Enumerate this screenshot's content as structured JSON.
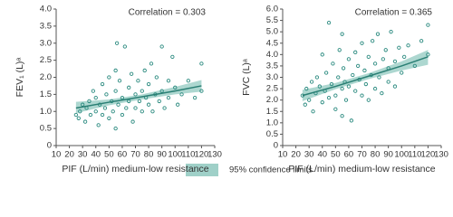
{
  "chart_data": [
    {
      "type": "scatter",
      "ylabel": "FEV₁ (L)ᵃ",
      "xlabel": "PIF (L/min) medium-low resistance",
      "annotation": "Correlation = 0.303",
      "xlim": [
        10,
        130
      ],
      "xticks": [
        10,
        20,
        30,
        40,
        50,
        60,
        70,
        80,
        90,
        100,
        110,
        120,
        130
      ],
      "ylim": [
        0,
        4
      ],
      "yticks": [
        0,
        0.5,
        {
          "value": 1,
          "label": "1.0"
        },
        1.5,
        {
          "value": 2,
          "label": "2.0"
        },
        2.5,
        {
          "value": 3,
          "label": "3.0"
        },
        3.5,
        {
          "value": 4,
          "label": "4.0"
        }
      ],
      "color": "#2a8a7f",
      "x": [
        25,
        27,
        28,
        30,
        32,
        33,
        35,
        36,
        38,
        40,
        40,
        42,
        43,
        45,
        45,
        47,
        48,
        50,
        50,
        52,
        53,
        55,
        55,
        55,
        56,
        57,
        58,
        60,
        60,
        62,
        63,
        65,
        65,
        67,
        68,
        70,
        70,
        72,
        73,
        75,
        75,
        77,
        78,
        80,
        80,
        82,
        83,
        85,
        86,
        88,
        90,
        90,
        92,
        95,
        95,
        98,
        100,
        102,
        105,
        110,
        115,
        120,
        120
      ],
      "values": [
        0.9,
        0.8,
        1.0,
        1.2,
        0.7,
        1.1,
        1.3,
        0.9,
        1.6,
        1.0,
        1.4,
        0.6,
        1.2,
        1.8,
        0.9,
        1.1,
        1.5,
        2.0,
        0.8,
        1.3,
        1.0,
        2.2,
        1.6,
        0.5,
        3.0,
        1.2,
        1.9,
        1.4,
        0.9,
        2.9,
        1.1,
        1.7,
        1.3,
        2.1,
        0.7,
        1.5,
        1.1,
        1.9,
        1.3,
        1.0,
        1.6,
        2.2,
        1.4,
        1.2,
        1.8,
        2.4,
        1.0,
        1.5,
        2.0,
        1.3,
        2.9,
        1.6,
        1.1,
        1.9,
        1.4,
        2.6,
        1.7,
        1.2,
        1.5,
        1.9,
        1.4,
        2.4,
        1.6
      ],
      "fit": {
        "color": "#2a7f74",
        "x": [
          25,
          50,
          75,
          100,
          120
        ],
        "values": [
          1.1,
          1.27,
          1.43,
          1.6,
          1.75
        ],
        "lower": [
          0.95,
          1.18,
          1.35,
          1.5,
          1.58
        ],
        "upper": [
          1.28,
          1.35,
          1.5,
          1.72,
          1.92
        ]
      }
    },
    {
      "type": "scatter",
      "ylabel": "FVC (L)ᵃ",
      "xlabel": "PIF (L/min) medium-low resistance",
      "annotation": "Correlation = 0.365",
      "xlim": [
        10,
        130
      ],
      "xticks": [
        10,
        20,
        30,
        40,
        50,
        60,
        70,
        80,
        90,
        100,
        110,
        120,
        130
      ],
      "ylim": [
        0,
        6
      ],
      "yticks": [
        0,
        0.5,
        {
          "value": 1,
          "label": "1.0"
        },
        1.5,
        {
          "value": 2,
          "label": "2.0"
        },
        2.5,
        {
          "value": 3,
          "label": "3.0"
        },
        3.5,
        {
          "value": 4,
          "label": "4.0"
        },
        4.5,
        {
          "value": 5,
          "label": "5.0"
        },
        5.5,
        {
          "value": 6,
          "label": "6.0"
        }
      ],
      "color": "#2a8a7f",
      "x": [
        25,
        27,
        28,
        30,
        32,
        33,
        35,
        36,
        38,
        40,
        40,
        42,
        43,
        45,
        45,
        47,
        48,
        50,
        50,
        52,
        53,
        55,
        55,
        55,
        56,
        57,
        58,
        60,
        60,
        62,
        63,
        65,
        65,
        67,
        68,
        70,
        70,
        72,
        73,
        75,
        75,
        77,
        78,
        80,
        80,
        82,
        83,
        85,
        86,
        88,
        90,
        90,
        92,
        95,
        95,
        98,
        100,
        102,
        105,
        110,
        115,
        120,
        120
      ],
      "values": [
        2.2,
        1.8,
        2.5,
        2.0,
        2.8,
        1.5,
        2.3,
        3.0,
        2.6,
        4.0,
        1.9,
        2.4,
        3.2,
        5.4,
        2.1,
        2.7,
        3.6,
        2.2,
        1.6,
        3.0,
        4.2,
        2.5,
        4.9,
        1.3,
        3.4,
        2.8,
        2.0,
        3.8,
        2.6,
        1.1,
        3.1,
        4.1,
        2.4,
        3.5,
        2.9,
        2.2,
        4.5,
        3.3,
        2.7,
        3.9,
        2.0,
        3.1,
        4.6,
        2.5,
        3.6,
        4.9,
        3.0,
        2.3,
        3.8,
        4.2,
        3.4,
        2.8,
        5.0,
        3.7,
        2.6,
        4.3,
        3.2,
        3.9,
        4.4,
        3.5,
        4.6,
        5.3,
        4.0
      ],
      "fit": {
        "color": "#2a7f74",
        "x": [
          25,
          50,
          75,
          100,
          120
        ],
        "values": [
          2.2,
          2.6,
          3.05,
          3.5,
          3.9
        ],
        "lower": [
          1.95,
          2.48,
          2.92,
          3.3,
          3.55
        ],
        "upper": [
          2.45,
          2.75,
          3.18,
          3.7,
          4.2
        ]
      }
    }
  ],
  "legend": {
    "label": "95% confidence limits",
    "color": "#9fd0c8"
  }
}
